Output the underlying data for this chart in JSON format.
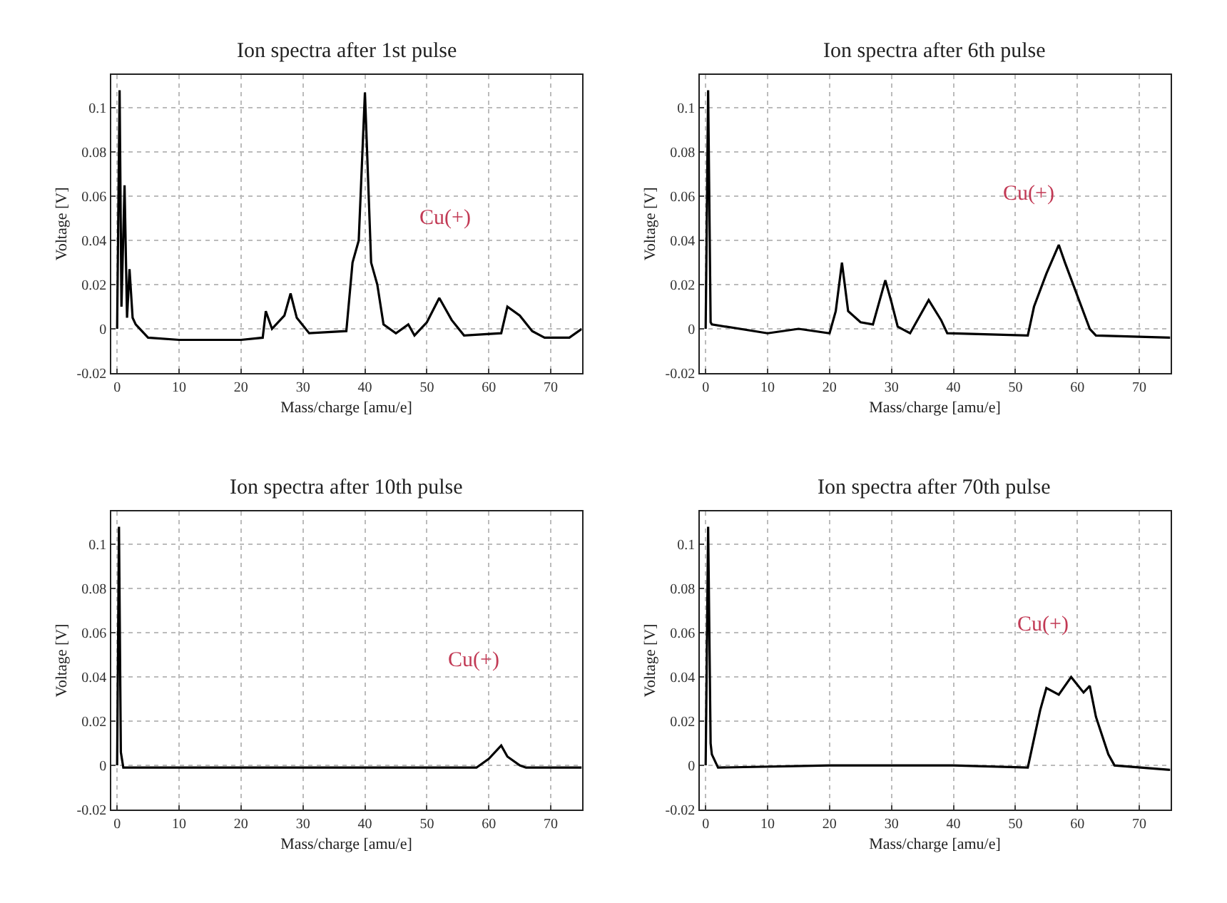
{
  "chart_data": [
    {
      "type": "line",
      "title": "Ion spectra after 1st pulse",
      "xlabel": "Mass/charge [amu/e]",
      "ylabel": "Voltage [V]",
      "xlim": [
        -1,
        75
      ],
      "ylim": [
        -0.02,
        0.115
      ],
      "xticks": [
        0,
        10,
        20,
        30,
        40,
        50,
        60,
        70
      ],
      "yticks": [
        -0.02,
        0,
        0.02,
        0.04,
        0.06,
        0.08,
        0.1
      ],
      "grid": true,
      "series": [
        {
          "color": "#000000",
          "x": [
            0,
            0.4,
            0.7,
            1.2,
            1.6,
            2,
            2.5,
            3,
            5,
            10,
            20,
            23.5,
            24,
            25,
            27,
            28,
            29,
            31,
            37,
            38,
            39,
            40,
            41,
            42,
            43,
            45,
            47,
            48,
            50,
            52,
            54,
            56,
            62,
            63,
            65,
            67,
            69,
            73,
            75
          ],
          "values": [
            0,
            0.108,
            0.01,
            0.065,
            0.005,
            0.027,
            0.005,
            0.002,
            -0.004,
            -0.005,
            -0.005,
            -0.004,
            0.008,
            0,
            0.006,
            0.016,
            0.005,
            -0.002,
            -0.001,
            0.03,
            0.04,
            0.107,
            0.03,
            0.02,
            0.002,
            -0.002,
            0.002,
            -0.003,
            0.003,
            0.014,
            0.004,
            -0.003,
            -0.002,
            0.01,
            0.006,
            -0.001,
            -0.004,
            -0.004,
            0
          ]
        }
      ],
      "annotations": [
        "Cu(+)"
      ]
    },
    {
      "type": "line",
      "title": "Ion spectra after 6th pulse",
      "xlabel": "Mass/charge [amu/e]",
      "ylabel": "Voltage [V]",
      "xlim": [
        -1,
        75
      ],
      "ylim": [
        -0.02,
        0.115
      ],
      "xticks": [
        0,
        10,
        20,
        30,
        40,
        50,
        60,
        70
      ],
      "yticks": [
        -0.02,
        0,
        0.02,
        0.04,
        0.06,
        0.08,
        0.1
      ],
      "grid": true,
      "series": [
        {
          "color": "#000000",
          "x": [
            0,
            0.4,
            0.8,
            1,
            10,
            15,
            20,
            21,
            22,
            23,
            25,
            27,
            29,
            30,
            31,
            33,
            36,
            38,
            39,
            52,
            53,
            55,
            57,
            58,
            60,
            62,
            63,
            75
          ],
          "values": [
            0,
            0.108,
            0.003,
            0.002,
            -0.002,
            0,
            -0.002,
            0.008,
            0.03,
            0.008,
            0.003,
            0.002,
            0.022,
            0.012,
            0.001,
            -0.002,
            0.013,
            0.004,
            -0.002,
            -0.003,
            0.01,
            0.025,
            0.038,
            0.03,
            0.015,
            0,
            -0.003,
            -0.004
          ]
        }
      ],
      "annotations": [
        "Cu(+)"
      ]
    },
    {
      "type": "line",
      "title": "Ion spectra after 10th pulse",
      "xlabel": "Mass/charge [amu/e]",
      "ylabel": "Voltage [V]",
      "xlim": [
        -1,
        75
      ],
      "ylim": [
        -0.02,
        0.115
      ],
      "xticks": [
        0,
        10,
        20,
        30,
        40,
        50,
        60,
        70
      ],
      "yticks": [
        -0.02,
        0,
        0.02,
        0.04,
        0.06,
        0.08,
        0.1
      ],
      "grid": true,
      "series": [
        {
          "color": "#000000",
          "x": [
            0,
            0.3,
            0.6,
            1,
            20,
            40,
            58,
            60,
            62,
            63,
            65,
            66,
            75
          ],
          "values": [
            0,
            0.108,
            0.006,
            -0.001,
            -0.001,
            -0.001,
            -0.001,
            0.003,
            0.009,
            0.004,
            0,
            -0.001,
            -0.001
          ]
        }
      ],
      "annotations": [
        "Cu(+)"
      ]
    },
    {
      "type": "line",
      "title": "Ion spectra after 70th pulse",
      "xlabel": "Mass/charge [amu/e]",
      "ylabel": "Voltage [V]",
      "xlim": [
        -1,
        75
      ],
      "ylim": [
        -0.02,
        0.115
      ],
      "xticks": [
        0,
        10,
        20,
        30,
        40,
        50,
        60,
        70
      ],
      "yticks": [
        -0.02,
        0,
        0.02,
        0.04,
        0.06,
        0.08,
        0.1
      ],
      "grid": true,
      "series": [
        {
          "color": "#000000",
          "x": [
            0,
            0.4,
            0.8,
            1,
            2,
            20,
            40,
            52,
            53,
            54,
            55,
            57,
            59,
            61,
            62,
            63,
            65,
            66,
            75
          ],
          "values": [
            0,
            0.108,
            0.01,
            0.005,
            -0.001,
            0,
            0,
            -0.001,
            0.012,
            0.025,
            0.035,
            0.032,
            0.04,
            0.033,
            0.036,
            0.022,
            0.005,
            0,
            -0.002
          ]
        }
      ],
      "annotations": [
        "Cu(+)"
      ]
    }
  ]
}
